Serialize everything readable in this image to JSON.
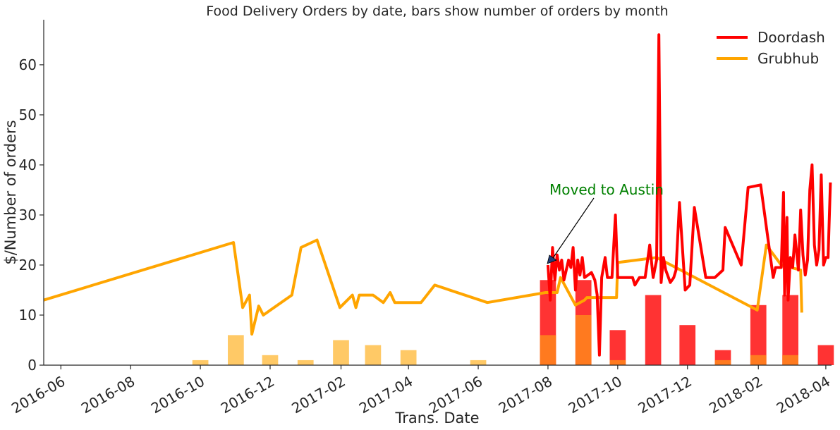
{
  "chart_data": {
    "type": "line",
    "title": "Food Delivery Orders by date, bars show number of orders by month",
    "xlabel": "Trans. Date",
    "ylabel": "$/Number of orders",
    "xlim": [
      "2016-05-17",
      "2018-04-06"
    ],
    "ylim": [
      0,
      69
    ],
    "x_ticks": [
      "2016-06",
      "2016-08",
      "2016-10",
      "2016-12",
      "2017-02",
      "2017-04",
      "2017-06",
      "2017-08",
      "2017-10",
      "2017-12",
      "2018-02",
      "2018-04"
    ],
    "y_ticks": [
      0,
      10,
      20,
      30,
      40,
      50,
      60
    ],
    "grid": false,
    "legend_position": "top-right",
    "colors": {
      "Doordash": "#ff0000",
      "Grubhub": "#ffa500",
      "Doordash_bars": "#ff3333",
      "Grubhub_bars": "#ffc966",
      "Grubhub_bars_overlap": "#ff7a1f",
      "annotation": "#008000"
    },
    "annotation": {
      "text": "Moved to Austin",
      "x": "2017-08-02",
      "y": 20
    },
    "series": [
      {
        "name": "Doordash",
        "kind": "line",
        "points": [
          [
            "2017-08-01",
            20
          ],
          [
            "2017-08-03",
            13
          ],
          [
            "2017-08-05",
            23.5
          ],
          [
            "2017-08-07",
            17
          ],
          [
            "2017-08-09",
            22
          ],
          [
            "2017-08-11",
            19
          ],
          [
            "2017-08-13",
            21
          ],
          [
            "2017-08-15",
            17
          ],
          [
            "2017-08-17",
            19
          ],
          [
            "2017-08-19",
            21
          ],
          [
            "2017-08-21",
            19.5
          ],
          [
            "2017-08-23",
            23.5
          ],
          [
            "2017-08-25",
            15
          ],
          [
            "2017-08-27",
            21
          ],
          [
            "2017-08-29",
            18
          ],
          [
            "2017-08-31",
            21.5
          ],
          [
            "2017-09-02",
            17.5
          ],
          [
            "2017-09-05",
            18
          ],
          [
            "2017-09-08",
            18.5
          ],
          [
            "2017-09-11",
            17
          ],
          [
            "2017-09-13",
            14
          ],
          [
            "2017-09-15",
            2
          ],
          [
            "2017-09-17",
            17.5
          ],
          [
            "2017-09-20",
            21.5
          ],
          [
            "2017-09-22",
            17.5
          ],
          [
            "2017-09-26",
            17.5
          ],
          [
            "2017-09-29",
            30
          ],
          [
            "2017-10-01",
            17.5
          ],
          [
            "2017-10-10",
            17.5
          ],
          [
            "2017-10-14",
            17.5
          ],
          [
            "2017-10-16",
            16
          ],
          [
            "2017-10-20",
            17.5
          ],
          [
            "2017-10-25",
            17.5
          ],
          [
            "2017-10-29",
            24
          ],
          [
            "2017-11-01",
            17.5
          ],
          [
            "2017-11-04",
            21
          ],
          [
            "2017-11-06",
            66
          ],
          [
            "2017-11-08",
            16.5
          ],
          [
            "2017-11-10",
            21.5
          ],
          [
            "2017-11-12",
            19
          ],
          [
            "2017-11-16",
            16.5
          ],
          [
            "2017-11-19",
            17.5
          ],
          [
            "2017-11-21",
            19
          ],
          [
            "2017-11-24",
            32.5
          ],
          [
            "2017-11-29",
            15
          ],
          [
            "2017-12-03",
            16
          ],
          [
            "2017-12-07",
            31.5
          ],
          [
            "2017-12-17",
            17.5
          ],
          [
            "2017-12-25",
            17.5
          ],
          [
            "2018-01-01",
            19
          ],
          [
            "2018-01-03",
            27.5
          ],
          [
            "2018-01-17",
            20
          ],
          [
            "2018-01-23",
            35.5
          ],
          [
            "2018-02-03",
            36
          ],
          [
            "2018-02-14",
            17.5
          ],
          [
            "2018-02-16",
            19.5
          ],
          [
            "2018-02-21",
            19.5
          ],
          [
            "2018-02-23",
            34.5
          ],
          [
            "2018-02-24",
            14
          ],
          [
            "2018-02-26",
            29.5
          ],
          [
            "2018-02-27",
            13
          ],
          [
            "2018-03-01",
            21.5
          ],
          [
            "2018-03-03",
            19.5
          ],
          [
            "2018-03-05",
            26
          ],
          [
            "2018-03-08",
            19
          ],
          [
            "2018-03-10",
            31
          ],
          [
            "2018-03-12",
            22
          ],
          [
            "2018-03-14",
            18
          ],
          [
            "2018-03-16",
            21
          ],
          [
            "2018-03-18",
            35
          ],
          [
            "2018-03-20",
            40
          ],
          [
            "2018-03-22",
            24
          ],
          [
            "2018-03-24",
            20
          ],
          [
            "2018-03-26",
            23
          ],
          [
            "2018-03-28",
            38
          ],
          [
            "2018-03-30",
            20
          ],
          [
            "2018-04-01",
            21.5
          ],
          [
            "2018-04-03",
            21.5
          ],
          [
            "2018-04-05",
            36.5
          ]
        ]
      },
      {
        "name": "Grubhub",
        "kind": "line",
        "points": [
          [
            "2016-05-17",
            13
          ],
          [
            "2016-10-30",
            24.5
          ],
          [
            "2016-11-07",
            11.5
          ],
          [
            "2016-11-13",
            14
          ],
          [
            "2016-11-15",
            6.2
          ],
          [
            "2016-11-21",
            11.8
          ],
          [
            "2016-11-25",
            10
          ],
          [
            "2016-12-20",
            14
          ],
          [
            "2016-12-28",
            23.5
          ],
          [
            "2017-01-11",
            25
          ],
          [
            "2017-01-31",
            11.5
          ],
          [
            "2017-02-11",
            14
          ],
          [
            "2017-02-14",
            11.5
          ],
          [
            "2017-02-17",
            14
          ],
          [
            "2017-03-01",
            14
          ],
          [
            "2017-03-10",
            12.5
          ],
          [
            "2017-03-16",
            14.5
          ],
          [
            "2017-03-20",
            12.5
          ],
          [
            "2017-04-12",
            12.5
          ],
          [
            "2017-04-24",
            16
          ],
          [
            "2017-06-09",
            12.5
          ],
          [
            "2017-07-30",
            14.5
          ],
          [
            "2017-08-09",
            14.5
          ],
          [
            "2017-08-12",
            17.5
          ],
          [
            "2017-08-25",
            12
          ],
          [
            "2017-09-02",
            13
          ],
          [
            "2017-09-04",
            13.5
          ],
          [
            "2017-09-30",
            13.5
          ],
          [
            "2017-10-01",
            20.5
          ],
          [
            "2017-11-04",
            21.5
          ],
          [
            "2018-01-31",
            11
          ],
          [
            "2018-02-08",
            24
          ],
          [
            "2018-02-21",
            20
          ],
          [
            "2018-03-10",
            19
          ],
          [
            "2018-03-11",
            10.5
          ]
        ]
      },
      {
        "name": "Doordash",
        "kind": "bar",
        "months": [
          "2017-08",
          "2017-09",
          "2017-10",
          "2017-11",
          "2017-12",
          "2018-01",
          "2018-02",
          "2018-03",
          "2018-04"
        ],
        "values": [
          17,
          17,
          7,
          14,
          8,
          3,
          12,
          14,
          4
        ]
      },
      {
        "name": "Grubhub",
        "kind": "bar",
        "months": [
          "2016-10",
          "2016-11",
          "2016-12",
          "2017-01",
          "2017-02",
          "2017-03",
          "2017-04",
          "2017-06",
          "2017-08",
          "2017-09",
          "2017-10",
          "2018-01",
          "2018-02",
          "2018-03"
        ],
        "values": [
          1,
          6,
          2,
          1,
          5,
          4,
          3,
          1,
          6,
          10,
          1,
          1,
          2,
          2
        ]
      }
    ]
  }
}
